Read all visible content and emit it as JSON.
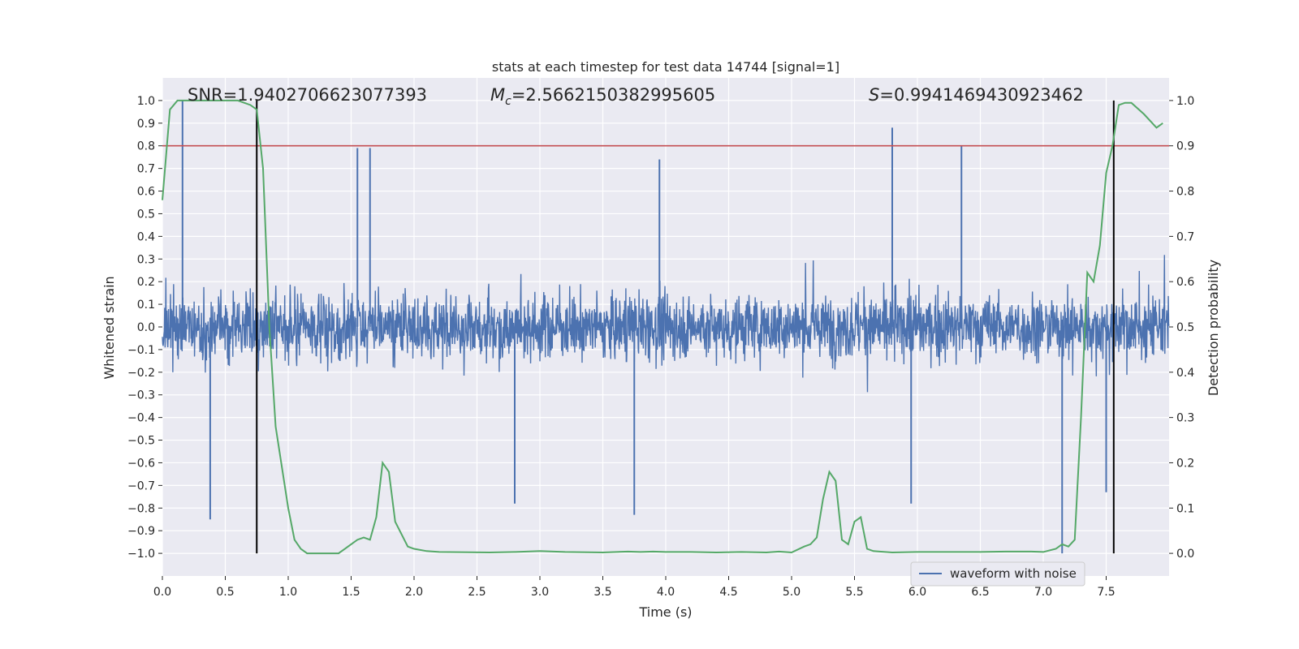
{
  "chart_data": {
    "type": "line",
    "title": "stats at each timestep for test data 14744 [signal=1]",
    "xlabel": "Time (s)",
    "ylabel_left": "Whitened strain",
    "ylabel_right": "Detection probability",
    "xlim": [
      0.0,
      8.0
    ],
    "ylim_left": [
      -1.1,
      1.1
    ],
    "ylim_right": [
      -0.05,
      1.05
    ],
    "x_ticks": [
      "0.0",
      "0.5",
      "1.0",
      "1.5",
      "2.0",
      "2.5",
      "3.0",
      "3.5",
      "4.0",
      "4.5",
      "5.0",
      "5.5",
      "6.0",
      "6.5",
      "7.0",
      "7.5"
    ],
    "y_ticks_left": [
      "1.0",
      "0.9",
      "0.8",
      "0.7",
      "0.6",
      "0.5",
      "0.4",
      "0.3",
      "0.2",
      "0.1",
      "0.0",
      "-0.1",
      "-0.2",
      "-0.3",
      "-0.4",
      "-0.5",
      "-0.6",
      "-0.7",
      "-0.8",
      "-0.9",
      "-1.0"
    ],
    "y_ticks_right": [
      "1.0",
      "0.9",
      "0.8",
      "0.7",
      "0.6",
      "0.5",
      "0.4",
      "0.3",
      "0.2",
      "0.1",
      "0.0"
    ],
    "grid": true,
    "legend_position": "lower-right",
    "legend_label": "waveform with noise",
    "annotations": {
      "snr": "SNR=1.9402706623077393",
      "mc_symbol": "M",
      "mc_sub": "c",
      "mc_value": "=2.5662150382995605",
      "s_symbol": "S",
      "s_value": "=0.9941469430923462"
    },
    "threshold_level": 0.9,
    "vlines_x": [
      0.75,
      7.56
    ],
    "detection_probability": {
      "x": [
        0.0,
        0.06,
        0.12,
        0.18,
        0.25,
        0.35,
        0.5,
        0.6,
        0.7,
        0.75,
        0.8,
        0.85,
        0.9,
        1.0,
        1.05,
        1.1,
        1.15,
        1.2,
        1.3,
        1.4,
        1.45,
        1.5,
        1.55,
        1.6,
        1.65,
        1.7,
        1.75,
        1.8,
        1.85,
        1.95,
        2.0,
        2.1,
        2.2,
        2.6,
        2.8,
        3.0,
        3.2,
        3.5,
        3.7,
        3.8,
        3.9,
        4.0,
        4.2,
        4.4,
        4.6,
        4.8,
        4.9,
        5.0,
        5.1,
        5.15,
        5.2,
        5.25,
        5.3,
        5.35,
        5.4,
        5.45,
        5.5,
        5.55,
        5.6,
        5.65,
        5.7,
        5.8,
        6.0,
        6.5,
        6.7,
        6.9,
        7.0,
        7.1,
        7.15,
        7.2,
        7.25,
        7.3,
        7.35,
        7.4,
        7.45,
        7.5,
        7.55,
        7.6,
        7.65,
        7.7,
        7.8,
        7.9,
        7.95
      ],
      "y": [
        0.78,
        0.98,
        1.0,
        1.0,
        1.0,
        1.0,
        1.0,
        1.0,
        0.99,
        0.98,
        0.85,
        0.5,
        0.28,
        0.1,
        0.03,
        0.01,
        0.0,
        0.0,
        0.0,
        0.0,
        0.01,
        0.02,
        0.03,
        0.035,
        0.03,
        0.08,
        0.2,
        0.18,
        0.07,
        0.015,
        0.01,
        0.005,
        0.003,
        0.002,
        0.003,
        0.005,
        0.003,
        0.002,
        0.004,
        0.003,
        0.004,
        0.003,
        0.003,
        0.002,
        0.003,
        0.002,
        0.004,
        0.002,
        0.015,
        0.02,
        0.035,
        0.12,
        0.18,
        0.16,
        0.03,
        0.02,
        0.07,
        0.08,
        0.01,
        0.005,
        0.004,
        0.002,
        0.003,
        0.003,
        0.004,
        0.004,
        0.003,
        0.01,
        0.02,
        0.015,
        0.03,
        0.3,
        0.62,
        0.6,
        0.68,
        0.84,
        0.9,
        0.99,
        0.995,
        0.995,
        0.97,
        0.94,
        0.95
      ]
    },
    "whitened_strain": {
      "note": "dense noisy waveform sampled over 0 to 8 s, amplitude mostly within -0.45 to 0.45 with spikes to about 1.0 and -1.0",
      "spikes": [
        {
          "x": 0.16,
          "y": 1.0
        },
        {
          "x": 0.38,
          "y": -0.85
        },
        {
          "x": 1.55,
          "y": 0.79
        },
        {
          "x": 1.65,
          "y": 0.79
        },
        {
          "x": 2.8,
          "y": -0.78
        },
        {
          "x": 3.75,
          "y": -0.83
        },
        {
          "x": 3.95,
          "y": 0.74
        },
        {
          "x": 5.8,
          "y": 0.88
        },
        {
          "x": 5.95,
          "y": -0.78
        },
        {
          "x": 6.35,
          "y": 0.8
        },
        {
          "x": 7.15,
          "y": -1.0
        },
        {
          "x": 7.5,
          "y": -0.73
        }
      ]
    },
    "colors": {
      "waveform": "#4c72b0",
      "probability": "#55a868",
      "threshold": "#c44e52",
      "vlines": "#000000",
      "plot_background": "#eaeaf2"
    }
  }
}
